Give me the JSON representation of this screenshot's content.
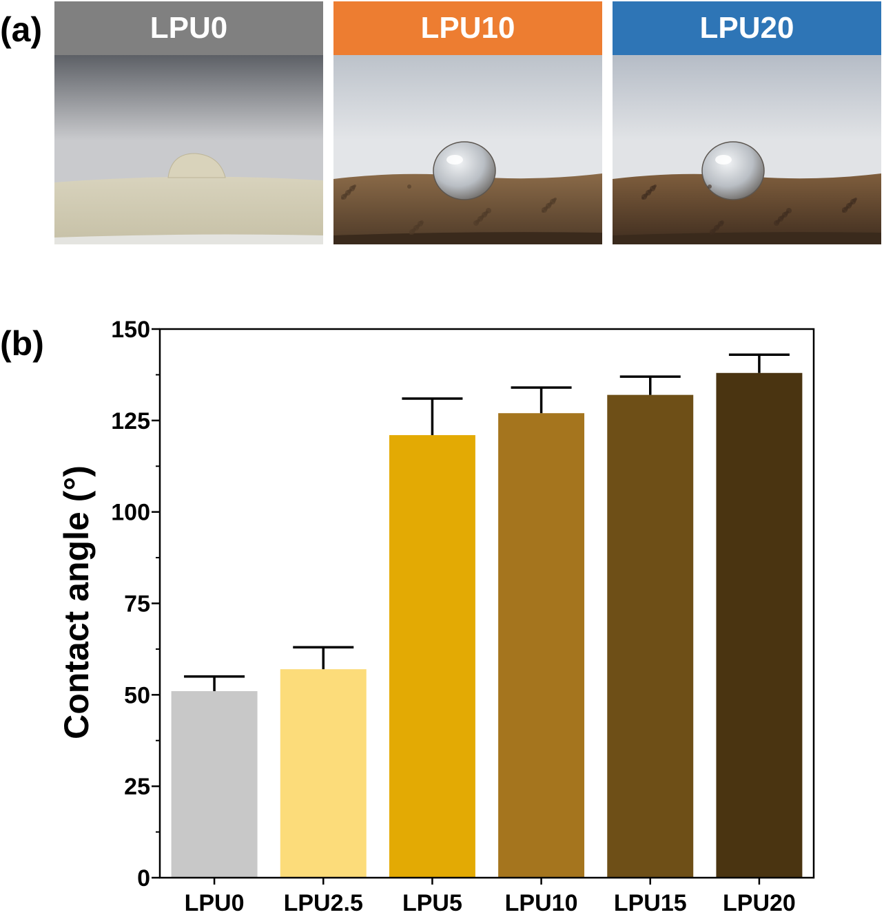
{
  "panel_a": {
    "label": "(a)",
    "photos": [
      {
        "title": "LPU0",
        "header_color": "#808080",
        "surface": "#d8d3bd",
        "surface_dark": "#c6c0a6",
        "sky_top": "#5d6066",
        "sky_bottom": "#c9cacd",
        "drop": "flat"
      },
      {
        "title": "LPU10",
        "header_color": "#ed7d31",
        "surface": "#8a6a48",
        "surface_dark": "#4e3a28",
        "sky_top": "#bcc2ca",
        "sky_bottom": "#e3e5e8",
        "drop": "round"
      },
      {
        "title": "LPU20",
        "header_color": "#2e75b6",
        "surface": "#7f5e3d",
        "surface_dark": "#3f2d1f",
        "sky_top": "#b5bcc6",
        "sky_bottom": "#e1e3e6",
        "drop": "round"
      }
    ]
  },
  "panel_b": {
    "label": "(b)"
  },
  "chart_data": {
    "type": "bar",
    "categories": [
      "LPU0",
      "LPU2.5",
      "LPU5",
      "LPU10",
      "LPU15",
      "LPU20"
    ],
    "values": [
      51,
      57,
      121,
      127,
      132,
      138
    ],
    "errors": [
      4,
      6,
      10,
      7,
      5,
      5
    ],
    "colors": [
      "#c8c8c8",
      "#fcdc7a",
      "#e3aa04",
      "#a5751e",
      "#6e4f17",
      "#4a3411"
    ],
    "ylabel": "Contact angle (°)",
    "xlabel": "",
    "ylim": [
      0,
      150
    ],
    "yticks": [
      0,
      25,
      50,
      75,
      100,
      125,
      150
    ],
    "grid": false,
    "legend": "none"
  }
}
